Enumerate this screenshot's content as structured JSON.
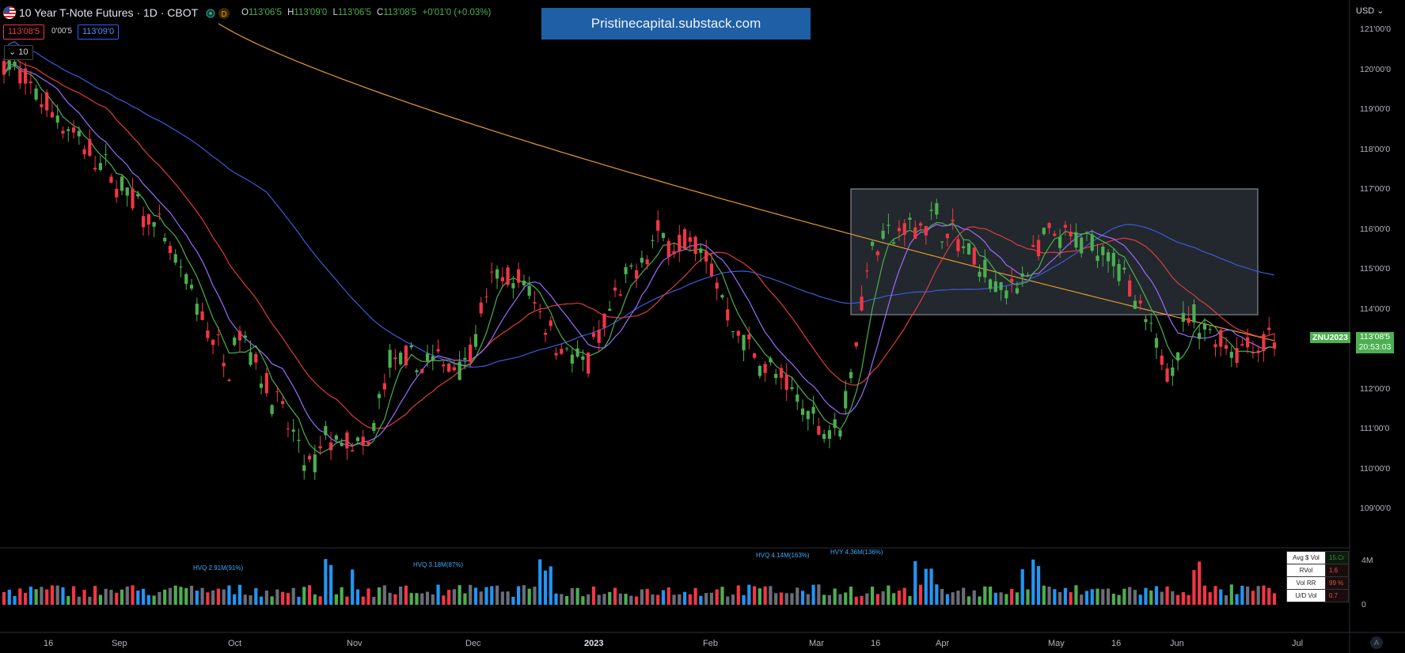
{
  "header": {
    "title": "10 Year T-Note Futures · 1D · CBOT",
    "ohlc": [
      {
        "key": "O",
        "value": "113'06'5"
      },
      {
        "key": "H",
        "value": "113'09'0"
      },
      {
        "key": "L",
        "value": "113'06'5"
      },
      {
        "key": "C",
        "value": "113'08'5"
      }
    ],
    "change": "+0'01'0 (+0.03%)",
    "bid": "113'08'5",
    "spread": "0'00'5",
    "ask": "113'09'0",
    "indicator_count": "10",
    "brand": "Pristinecapital.substack.com"
  },
  "price_axis": {
    "currency": "USD",
    "labels": [
      "121'00'0",
      "120'00'0",
      "119'00'0",
      "118'00'0",
      "117'00'0",
      "116'00'0",
      "115'00'0",
      "114'00'0",
      "113'00'0",
      "112'00'0",
      "111'00'0",
      "110'00'0",
      "109'00'0"
    ],
    "symbol": "ZNU2023",
    "last_price": "113'08'5",
    "countdown": "20:53:03"
  },
  "time_axis": [
    {
      "label": "16",
      "bold": false
    },
    {
      "label": "Sep",
      "bold": false
    },
    {
      "label": "Oct",
      "bold": false
    },
    {
      "label": "Nov",
      "bold": false
    },
    {
      "label": "Dec",
      "bold": false
    },
    {
      "label": "2023",
      "bold": true
    },
    {
      "label": "Feb",
      "bold": false
    },
    {
      "label": "Mar",
      "bold": false
    },
    {
      "label": "16",
      "bold": false
    },
    {
      "label": "Apr",
      "bold": false
    },
    {
      "label": "May",
      "bold": false
    },
    {
      "label": "16",
      "bold": false
    },
    {
      "label": "Jun",
      "bold": false
    },
    {
      "label": "Jul",
      "bold": false
    }
  ],
  "volume": {
    "annotations": [
      "HVQ 2.91M(91%)",
      "HVQ 3.18M(87%)",
      "HVQ 4.14M(163%)",
      "HVY 4.36M(136%)"
    ],
    "axis_labels": [
      "4M",
      "0"
    ],
    "stats_labels": [
      "Avg $ Vol",
      "RVol",
      "Vol RR",
      "U/D Vol"
    ],
    "stats_values": [
      "15.Cr",
      "1.6",
      "99 %",
      "0.7"
    ]
  },
  "colors": {
    "up": "#4caf50",
    "down": "#f23645",
    "ma_fast": "#9c6bff",
    "ma_mid": "#e03c3c",
    "ma_slow": "#3d5bd9",
    "ma_long": "#e69a2e",
    "vol_high": "#2196f3",
    "vol_neutral": "#6b6e78",
    "box": "#2e363c"
  },
  "icons": [
    "us-flag-icon",
    "data-status-icon",
    "chevron-down-icon",
    "tradingview-logo-icon"
  ],
  "chart_data": {
    "type": "candlestick",
    "title": "10 Year T-Note Futures · 1D · CBOT",
    "ylim": [
      108.6,
      121.3
    ],
    "trend_points": [
      {
        "date": "Aug 1",
        "close": 120.3
      },
      {
        "date": "Aug 16",
        "close": 119.2
      },
      {
        "date": "Sep 1",
        "close": 117.3
      },
      {
        "date": "Sep 15",
        "close": 116.0
      },
      {
        "date": "Oct 1",
        "close": 112.5
      },
      {
        "date": "Oct 10",
        "close": 113.6
      },
      {
        "date": "Oct 21",
        "close": 110.8
      },
      {
        "date": "Nov 1",
        "close": 109.8
      },
      {
        "date": "Nov 5",
        "close": 110.8
      },
      {
        "date": "Nov 10",
        "close": 110.4
      },
      {
        "date": "Nov 16",
        "close": 112.6
      },
      {
        "date": "Dec 1",
        "close": 112.7
      },
      {
        "date": "Dec 8",
        "close": 114.8
      },
      {
        "date": "Dec 16",
        "close": 114.6
      },
      {
        "date": "Dec 30",
        "close": 113.3
      },
      {
        "date": "Jan 5",
        "close": 112.5
      },
      {
        "date": "Jan 12",
        "close": 114.3
      },
      {
        "date": "Jan 20",
        "close": 115.8
      },
      {
        "date": "Feb 1",
        "close": 115.5
      },
      {
        "date": "Feb 10",
        "close": 113.4
      },
      {
        "date": "Feb 20",
        "close": 112.3
      },
      {
        "date": "Mar 2",
        "close": 111.0
      },
      {
        "date": "Mar 10",
        "close": 111.2
      },
      {
        "date": "Mar 16",
        "close": 115.6
      },
      {
        "date": "Apr 3",
        "close": 116.3
      },
      {
        "date": "Apr 14",
        "close": 114.3
      },
      {
        "date": "May 3",
        "close": 115.8
      },
      {
        "date": "May 16",
        "close": 115.5
      },
      {
        "date": "May 25",
        "close": 113.8
      },
      {
        "date": "May 31",
        "close": 112.5
      },
      {
        "date": "Jun 6",
        "close": 113.8
      },
      {
        "date": "Jun 16",
        "close": 113.0
      },
      {
        "date": "Jun 28",
        "close": 113.27
      }
    ],
    "moving_averages": [
      "fast",
      "mid",
      "slow",
      "long"
    ],
    "highlight_box": {
      "from": "Mar 16",
      "to": "Jun 15",
      "top": 117.0,
      "bottom": 113.85
    }
  }
}
